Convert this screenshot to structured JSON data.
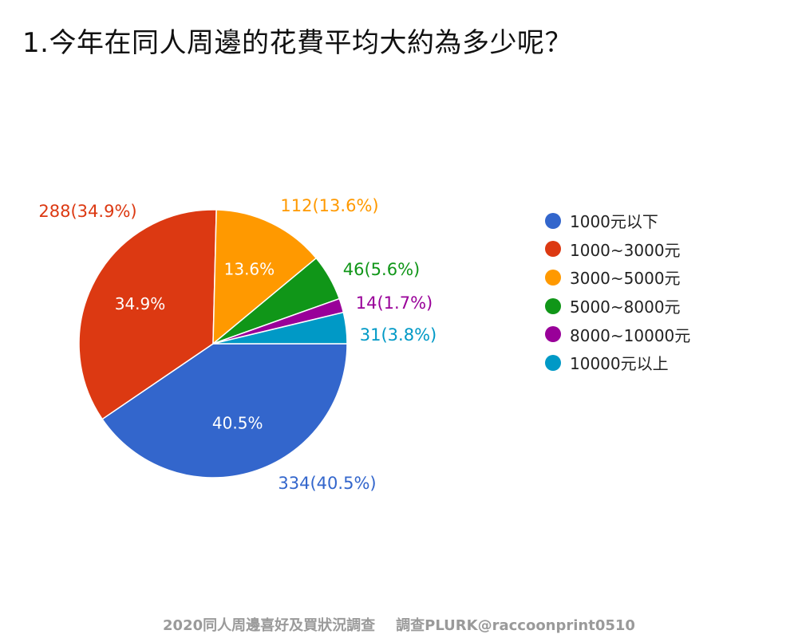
{
  "title": "1.今年在同人周邊的花費平均大約為多少呢？",
  "footer": {
    "survey_name": "2020同人周邊喜好及買狀況調查",
    "credit": "調查PLURK@raccoonprint0510"
  },
  "chart_data": {
    "type": "pie",
    "title": "1.今年在同人周邊的花費平均大約為多少呢？",
    "legend_position": "right",
    "slices": [
      {
        "label": "1000元以下",
        "value": 334,
        "percent": "40.5%",
        "color": "#3366cc",
        "inner_label": "40.5%",
        "outer_label": "334(40.5%)"
      },
      {
        "label": "1000~3000元",
        "value": 288,
        "percent": "34.9%",
        "color": "#dc3912",
        "inner_label": "34.9%",
        "outer_label": "288(34.9%)"
      },
      {
        "label": "3000~5000元",
        "value": 112,
        "percent": "13.6%",
        "color": "#ff9900",
        "inner_label": "13.6%",
        "outer_label": "112(13.6%)"
      },
      {
        "label": "5000~8000元",
        "value": 46,
        "percent": "5.6%",
        "color": "#109618",
        "inner_label": "",
        "outer_label": "46(5.6%)"
      },
      {
        "label": "8000~10000元",
        "value": 14,
        "percent": "1.7%",
        "color": "#990099",
        "inner_label": "",
        "outer_label": "14(1.7%)"
      },
      {
        "label": "10000元以上",
        "value": 31,
        "percent": "3.8%",
        "color": "#0099c6",
        "inner_label": "",
        "outer_label": "31(3.8%)"
      }
    ]
  }
}
